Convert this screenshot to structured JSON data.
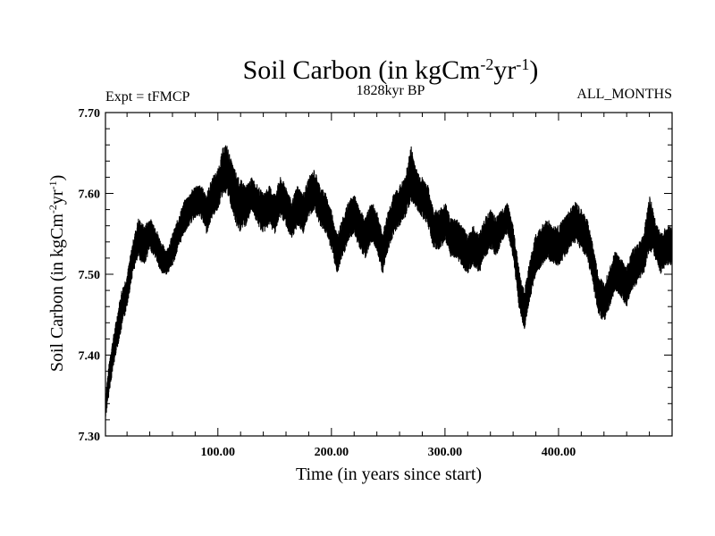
{
  "chart_data": {
    "type": "line",
    "title_main": "Soil Carbon (in kgCm",
    "title_sup1": "-2",
    "title_mid": "yr",
    "title_sup2": "-1",
    "title_end": ")",
    "expt_label": "Expt = tFMCP",
    "period_label": "1828kyr BP",
    "months_label": "ALL_MONTHS",
    "xlabel": "Time (in years since start)",
    "ylabel_main": "Soil Carbon (in kgCm",
    "ylabel_sup1": "-2",
    "ylabel_mid": "yr",
    "ylabel_sup2": "-1",
    "ylabel_end": ")",
    "xlim": [
      1,
      500
    ],
    "ylim": [
      7.3,
      7.7
    ],
    "x_ticks": [
      100,
      200,
      300,
      400
    ],
    "x_tick_labels": [
      "100.00",
      "200.00",
      "300.00",
      "400.00"
    ],
    "y_ticks": [
      7.3,
      7.4,
      7.5,
      7.6,
      7.7
    ],
    "y_tick_labels": [
      "7.30",
      "7.40",
      "7.50",
      "7.60",
      "7.70"
    ],
    "series": [
      {
        "name": "Soil Carbon",
        "x": [
          1,
          5,
          10,
          15,
          20,
          25,
          30,
          35,
          40,
          45,
          50,
          55,
          60,
          65,
          70,
          75,
          80,
          85,
          90,
          95,
          100,
          105,
          108,
          112,
          118,
          125,
          130,
          135,
          140,
          145,
          150,
          155,
          160,
          165,
          170,
          175,
          180,
          185,
          190,
          195,
          200,
          205,
          210,
          215,
          220,
          225,
          230,
          235,
          240,
          245,
          250,
          255,
          260,
          265,
          270,
          275,
          280,
          285,
          290,
          295,
          300,
          305,
          310,
          315,
          320,
          325,
          330,
          335,
          340,
          345,
          350,
          355,
          360,
          365,
          370,
          375,
          380,
          385,
          390,
          395,
          400,
          405,
          410,
          415,
          420,
          425,
          430,
          435,
          440,
          445,
          450,
          455,
          460,
          465,
          470,
          475,
          480,
          485,
          490,
          495,
          500
        ],
        "low": [
          7.32,
          7.36,
          7.4,
          7.43,
          7.46,
          7.5,
          7.52,
          7.51,
          7.53,
          7.52,
          7.5,
          7.5,
          7.51,
          7.53,
          7.55,
          7.56,
          7.57,
          7.57,
          7.55,
          7.57,
          7.58,
          7.6,
          7.6,
          7.58,
          7.55,
          7.56,
          7.58,
          7.56,
          7.55,
          7.56,
          7.55,
          7.57,
          7.56,
          7.54,
          7.56,
          7.55,
          7.57,
          7.58,
          7.56,
          7.55,
          7.53,
          7.5,
          7.52,
          7.54,
          7.55,
          7.53,
          7.52,
          7.54,
          7.53,
          7.5,
          7.53,
          7.55,
          7.56,
          7.57,
          7.59,
          7.58,
          7.57,
          7.56,
          7.53,
          7.53,
          7.54,
          7.52,
          7.52,
          7.51,
          7.5,
          7.51,
          7.5,
          7.52,
          7.53,
          7.52,
          7.54,
          7.55,
          7.52,
          7.46,
          7.43,
          7.47,
          7.5,
          7.51,
          7.52,
          7.51,
          7.51,
          7.52,
          7.53,
          7.54,
          7.53,
          7.52,
          7.49,
          7.45,
          7.44,
          7.46,
          7.48,
          7.47,
          7.46,
          7.48,
          7.49,
          7.5,
          7.53,
          7.52,
          7.5,
          7.51,
          7.51
        ],
        "high": [
          7.35,
          7.4,
          7.44,
          7.48,
          7.5,
          7.54,
          7.57,
          7.56,
          7.57,
          7.56,
          7.54,
          7.53,
          7.55,
          7.57,
          7.59,
          7.6,
          7.61,
          7.61,
          7.6,
          7.62,
          7.63,
          7.66,
          7.66,
          7.64,
          7.62,
          7.61,
          7.62,
          7.61,
          7.6,
          7.61,
          7.6,
          7.62,
          7.61,
          7.59,
          7.61,
          7.6,
          7.62,
          7.63,
          7.61,
          7.6,
          7.58,
          7.55,
          7.57,
          7.59,
          7.6,
          7.58,
          7.57,
          7.59,
          7.58,
          7.55,
          7.58,
          7.6,
          7.61,
          7.62,
          7.66,
          7.63,
          7.62,
          7.61,
          7.58,
          7.58,
          7.59,
          7.57,
          7.57,
          7.56,
          7.55,
          7.56,
          7.55,
          7.57,
          7.58,
          7.57,
          7.58,
          7.59,
          7.56,
          7.51,
          7.48,
          7.52,
          7.55,
          7.56,
          7.57,
          7.56,
          7.56,
          7.57,
          7.58,
          7.59,
          7.58,
          7.57,
          7.54,
          7.5,
          7.49,
          7.51,
          7.53,
          7.52,
          7.51,
          7.53,
          7.54,
          7.55,
          7.6,
          7.57,
          7.55,
          7.56,
          7.56
        ]
      }
    ]
  }
}
